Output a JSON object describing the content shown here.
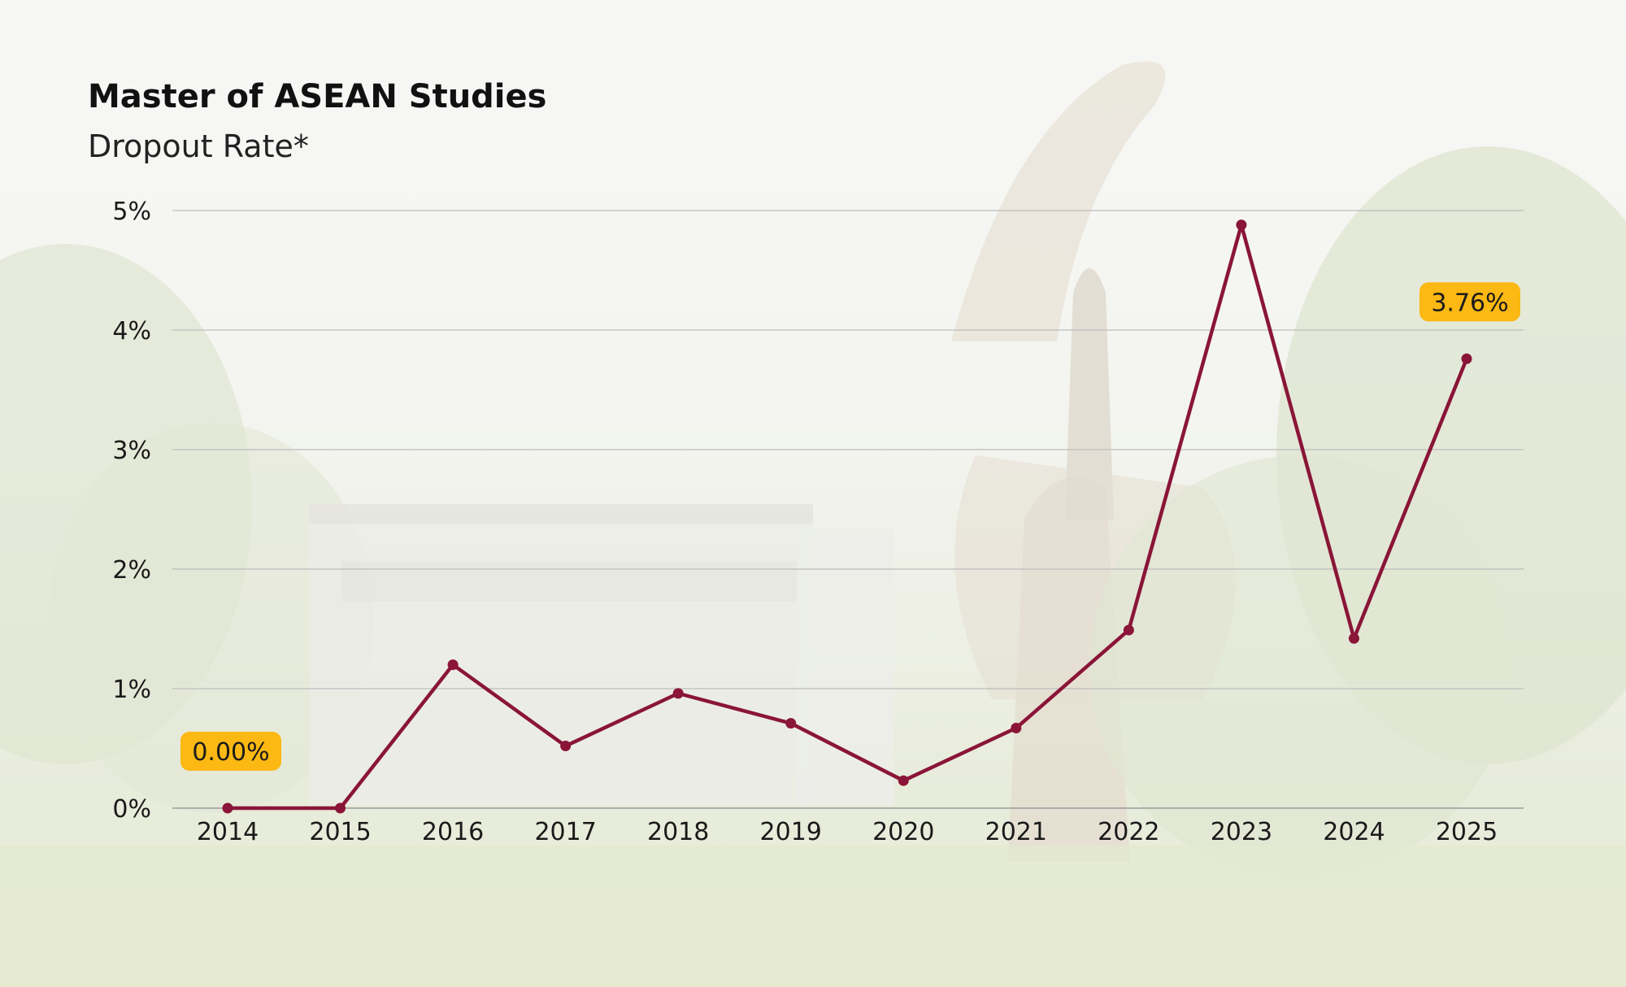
{
  "chart_data": {
    "type": "line",
    "title": "Master of ASEAN Studies",
    "subtitle": "Dropout Rate*",
    "x": [
      "2014",
      "2015",
      "2016",
      "2017",
      "2018",
      "2019",
      "2020",
      "2021",
      "2022",
      "2023",
      "2024",
      "2025"
    ],
    "series": [
      {
        "values": [
          0.0,
          0.0,
          1.2,
          0.52,
          0.96,
          0.71,
          0.23,
          0.67,
          1.49,
          4.88,
          1.42,
          3.76
        ],
        "color": "#8a1538"
      }
    ],
    "ylim": [
      0,
      5
    ],
    "yticks": [
      0,
      1,
      2,
      3,
      4,
      5
    ],
    "ytick_labels": [
      "0%",
      "1%",
      "2%",
      "3%",
      "4%",
      "5%"
    ],
    "grid": true,
    "annotations": [
      {
        "x": "2014",
        "value": 0.0,
        "label": "0.00%"
      },
      {
        "x": "2025",
        "value": 3.76,
        "label": "3.76%"
      }
    ],
    "annotation_color": "#fcb813"
  }
}
